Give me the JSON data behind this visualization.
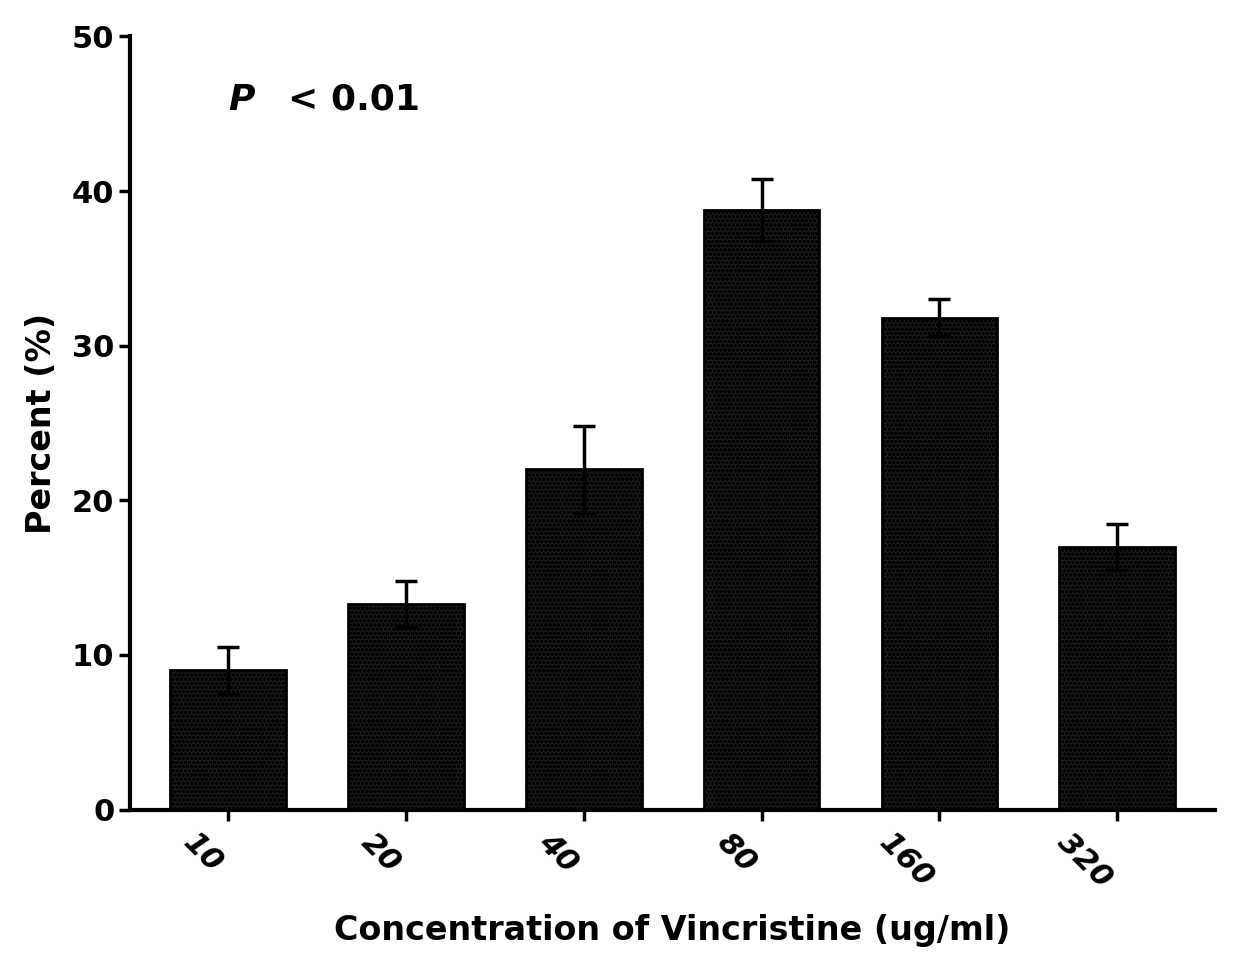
{
  "categories": [
    "10",
    "20",
    "40",
    "80",
    "160",
    "320"
  ],
  "values": [
    9.0,
    13.3,
    22.0,
    38.8,
    31.8,
    17.0
  ],
  "errors": [
    1.5,
    1.5,
    2.8,
    2.0,
    1.2,
    1.5
  ],
  "xlabel": "Concentration of Vincristine (ug/ml)",
  "ylabel": "Percent (%)",
  "ylim": [
    0,
    50
  ],
  "yticks": [
    0,
    10,
    20,
    30,
    40,
    50
  ],
  "annotation_p": "P",
  "annotation_rest": "< 0.01",
  "bar_color": "#1a1a1a",
  "background_color": "#ffffff",
  "bar_width": 0.65,
  "xlabel_fontsize": 24,
  "ylabel_fontsize": 24,
  "tick_fontsize": 22,
  "annotation_fontsize": 26
}
